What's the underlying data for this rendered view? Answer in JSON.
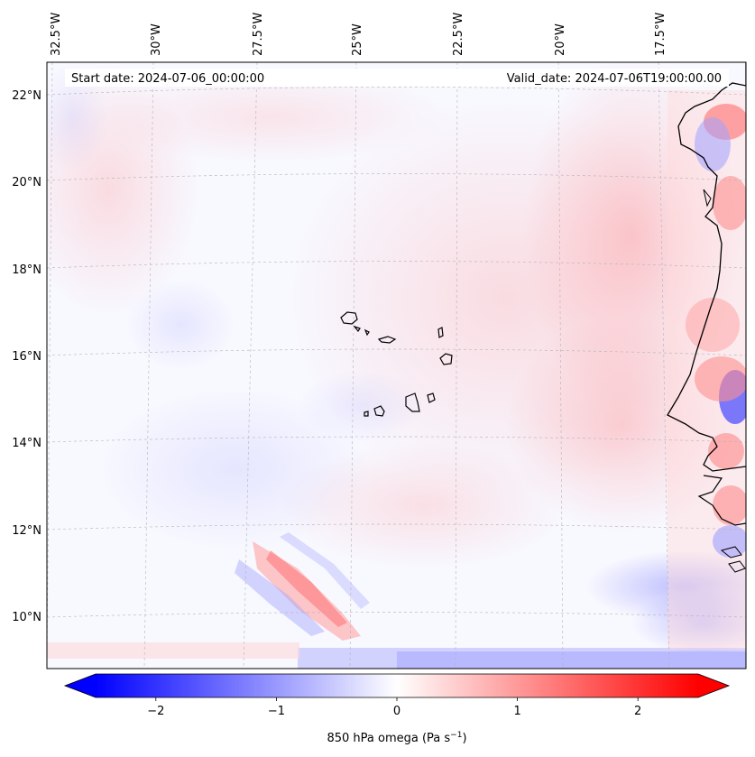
{
  "map": {
    "start_date": "Start date: 2024-07-06_00:00:00",
    "valid_date": "Valid_date: 2024-07-06T19:00:00.00",
    "lon_labels": [
      "32.5°W",
      "30°W",
      "27.5°W",
      "25°W",
      "22.5°W",
      "20°W",
      "17.5°W"
    ],
    "lat_labels": [
      "22°N",
      "20°N",
      "18°N",
      "16°N",
      "14°N",
      "12°N",
      "10°N"
    ],
    "colors": {
      "negative": "#0000ff",
      "zero": "#ffffff",
      "positive": "#ff0000",
      "coastline": "#000000",
      "gridline": "#b0b0b0"
    },
    "features": [
      "Cape Verde islands",
      "West African coastline (Mauritania, Senegal, Guinea-Bissau)",
      "Diagonal positive/negative omega band near 10-11°N, 27-25°W",
      "Negative omega strip along southern edge",
      "Strong positive/negative pattern along the African coast"
    ]
  },
  "colorbar": {
    "label_prefix": "850 hPa omega (Pa s",
    "label_sup": "−1",
    "label_suffix": ")",
    "ticks": [
      "−2",
      "−1",
      "0",
      "1",
      "2"
    ],
    "tick_values": [
      -2,
      -1,
      0,
      1,
      2
    ],
    "range": [
      -2.5,
      2.5
    ],
    "extend": "both"
  },
  "chart_data": {
    "type": "heatmap",
    "title": "850 hPa omega",
    "variable": "850 hPa omega",
    "units": "Pa s^-1",
    "start_date": "2024-07-06_00:00:00",
    "valid_date": "2024-07-06T19:00:00.00",
    "lon_range": [
      -32.6,
      -15.8
    ],
    "lat_range": [
      8.8,
      22.8
    ],
    "colorbar_range": [
      -2.5,
      2.5
    ],
    "colormap": "bwr"
  }
}
